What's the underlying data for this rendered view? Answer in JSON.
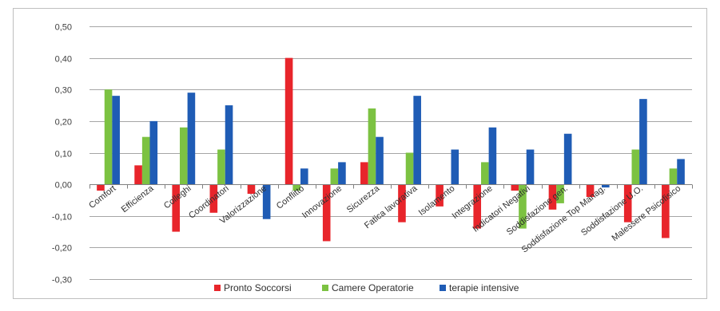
{
  "chart_data": {
    "type": "bar",
    "categories": [
      "Comfort",
      "Efficienza",
      "Colleghi",
      "Coordinatori",
      "Valorizzazione",
      "Conflitto",
      "Innovazione",
      "Sicurezza",
      "Fatica lavorativa",
      "Isolamento",
      "Integrazione",
      "Indicatori Negativi",
      "Soddisfazione gen.",
      "Soddisfazione Top Manag.",
      "Soddisfazione U.O.",
      "Malessere Psicofisico"
    ],
    "series": [
      {
        "name": "Pronto Soccorsi",
        "color": "#e8252b",
        "values": [
          -0.02,
          0.06,
          -0.15,
          -0.09,
          -0.03,
          0.4,
          -0.18,
          0.07,
          -0.12,
          -0.07,
          -0.14,
          -0.02,
          -0.08,
          -0.04,
          -0.12,
          -0.17
        ]
      },
      {
        "name": "Camere Operatorie",
        "color": "#7cc242",
        "values": [
          0.3,
          0.15,
          0.18,
          0.11,
          0.0,
          -0.02,
          0.05,
          0.24,
          0.1,
          0.0,
          0.07,
          -0.14,
          -0.06,
          0.0,
          0.11,
          0.05
        ]
      },
      {
        "name": "terapie intensive",
        "color": "#1f5cb5",
        "values": [
          0.28,
          0.2,
          0.29,
          0.25,
          -0.11,
          0.05,
          0.07,
          0.15,
          0.28,
          0.11,
          0.18,
          0.11,
          0.16,
          -0.01,
          0.27,
          0.08
        ]
      }
    ],
    "yticks": [
      "0,50",
      "0,40",
      "0,30",
      "0,20",
      "0,10",
      "0,00",
      "-0,10",
      "-0,20",
      "-0,30"
    ],
    "ylim": [
      -0.3,
      0.5
    ],
    "grid": true,
    "legend_position": "bottom"
  }
}
